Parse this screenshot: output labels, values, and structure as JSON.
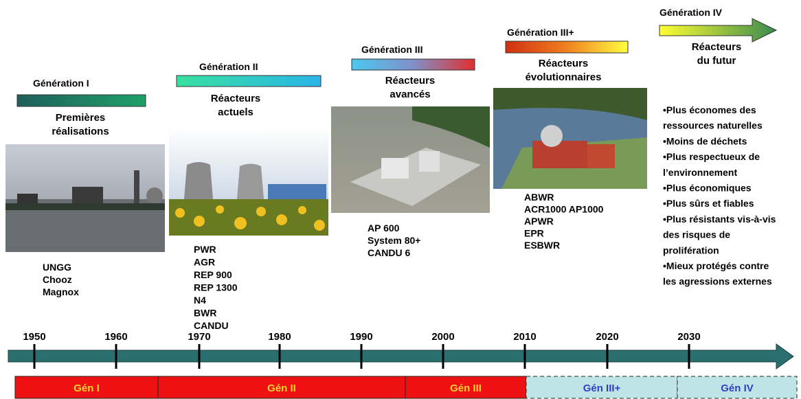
{
  "generations": [
    {
      "title": "Génération I",
      "description": [
        "Premières",
        "réalisations"
      ],
      "reactors": [
        "UNGG",
        "Chooz",
        "Magnox"
      ]
    },
    {
      "title": "Génération II",
      "description": [
        "Réacteurs",
        "actuels"
      ],
      "reactors": [
        "PWR",
        "AGR",
        "REP 900",
        "REP 1300",
        "N4",
        "BWR",
        "CANDU"
      ]
    },
    {
      "title": "Génération III",
      "description": [
        "Réacteurs",
        "avancés"
      ],
      "reactors": [
        "AP 600",
        "System 80+",
        "CANDU 6"
      ]
    },
    {
      "title": "Génération III+",
      "description": [
        "Réacteurs",
        "évolutionnaires"
      ],
      "reactors": [
        "ABWR",
        "ACR1000 AP1000",
        "APWR",
        "EPR",
        "ESBWR"
      ]
    },
    {
      "title": "Génération IV",
      "description": [
        "Réacteurs",
        "du futur"
      ],
      "reactors": [
        "•Plus économes des",
        "ressources naturelles",
        "•Moins de déchets",
        "•Plus respectueux de",
        "l’environnement",
        "•Plus économiques",
        "•Plus sûrs et fiables",
        "•Plus résistants vis-à-vis",
        "des risques de",
        "prolifération",
        "•Mieux protégés contre",
        "les agressions externes"
      ]
    }
  ],
  "timeline": {
    "years": [
      "1950",
      "1960",
      "1970",
      "1980",
      "1990",
      "2000",
      "2010",
      "2020",
      "2030"
    ]
  },
  "phases": [
    "Gén I",
    "Gén II",
    "Gén III",
    "Gén III+",
    "Gén IV"
  ]
}
